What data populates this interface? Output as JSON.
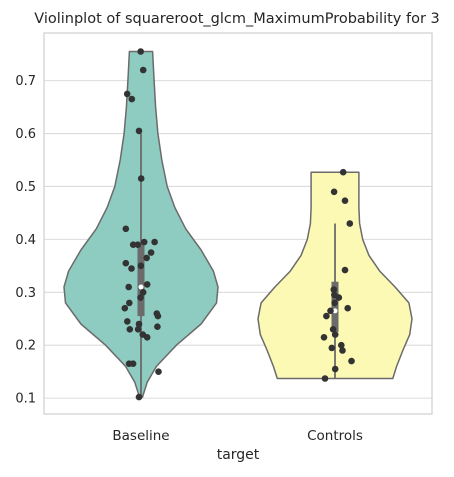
{
  "chart_data": {
    "type": "violin",
    "title": "Violinplot of squareroot_glcm_MaximumProbability for 3",
    "xlabel": "target",
    "ylabel": "",
    "ylim": [
      0.07,
      0.79
    ],
    "yticks": [
      0.1,
      0.2,
      0.3,
      0.4,
      0.5,
      0.6,
      0.7
    ],
    "grid": "horizontal",
    "categories": [
      "Baseline",
      "Controls"
    ],
    "colors": {
      "Baseline": "#8ecbc0",
      "Controls": "#fbf9b4",
      "outline": "#6b6b6b",
      "points": "#333333",
      "box": "#6b6b6b"
    },
    "groups": [
      {
        "name": "Baseline",
        "min": 0.102,
        "max": 0.755,
        "q1": 0.255,
        "median": 0.31,
        "q3": 0.39,
        "whisker_low": 0.102,
        "whisker_high": 0.6,
        "profile": [
          [
            0.102,
            0.02
          ],
          [
            0.13,
            0.08
          ],
          [
            0.16,
            0.2
          ],
          [
            0.2,
            0.46
          ],
          [
            0.24,
            0.78
          ],
          [
            0.28,
            0.98
          ],
          [
            0.31,
            1.0
          ],
          [
            0.34,
            0.94
          ],
          [
            0.38,
            0.78
          ],
          [
            0.42,
            0.58
          ],
          [
            0.46,
            0.44
          ],
          [
            0.5,
            0.34
          ],
          [
            0.55,
            0.27
          ],
          [
            0.6,
            0.22
          ],
          [
            0.65,
            0.19
          ],
          [
            0.7,
            0.17
          ],
          [
            0.755,
            0.15
          ]
        ],
        "points": [
          0.755,
          0.72,
          0.675,
          0.665,
          0.605,
          0.515,
          0.42,
          0.395,
          0.395,
          0.39,
          0.39,
          0.375,
          0.365,
          0.355,
          0.35,
          0.345,
          0.315,
          0.31,
          0.3,
          0.29,
          0.28,
          0.27,
          0.26,
          0.255,
          0.245,
          0.24,
          0.235,
          0.23,
          0.23,
          0.22,
          0.215,
          0.165,
          0.165,
          0.15,
          0.102
        ]
      },
      {
        "name": "Controls",
        "min": 0.137,
        "max": 0.527,
        "q1": 0.225,
        "median": 0.265,
        "q3": 0.32,
        "whisker_low": 0.137,
        "whisker_high": 0.43,
        "profile": [
          [
            0.137,
            0.75
          ],
          [
            0.16,
            0.8
          ],
          [
            0.19,
            0.88
          ],
          [
            0.22,
            0.97
          ],
          [
            0.25,
            1.0
          ],
          [
            0.28,
            0.96
          ],
          [
            0.31,
            0.78
          ],
          [
            0.34,
            0.58
          ],
          [
            0.37,
            0.44
          ],
          [
            0.4,
            0.36
          ],
          [
            0.43,
            0.32
          ],
          [
            0.46,
            0.31
          ],
          [
            0.5,
            0.31
          ],
          [
            0.527,
            0.31
          ]
        ],
        "points": [
          0.527,
          0.49,
          0.473,
          0.43,
          0.342,
          0.305,
          0.295,
          0.29,
          0.28,
          0.27,
          0.265,
          0.255,
          0.23,
          0.22,
          0.215,
          0.2,
          0.195,
          0.19,
          0.17,
          0.155,
          0.137
        ]
      }
    ]
  }
}
